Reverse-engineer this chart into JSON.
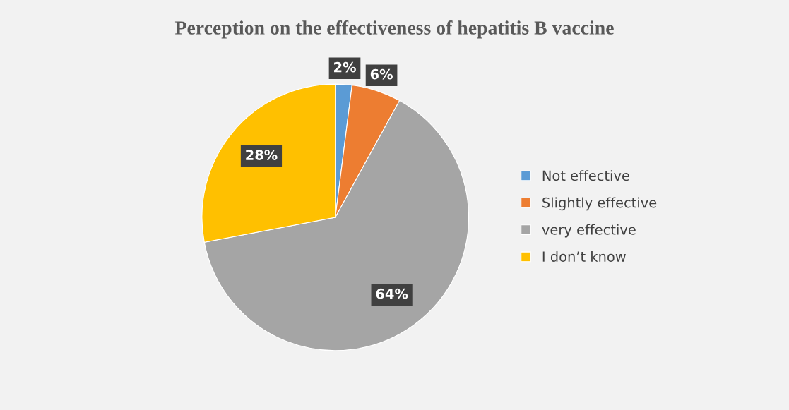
{
  "chart_data": {
    "type": "pie",
    "title": "Perception on the effectiveness of hepatitis B vaccine",
    "categories": [
      "Not effective",
      "Slightly effective",
      "very effective",
      "I don’t know"
    ],
    "values": [
      2,
      6,
      64,
      28
    ],
    "colors": [
      "#5b9bd5",
      "#ed7d31",
      "#a5a5a5",
      "#ffc000"
    ],
    "value_labels": [
      "2%",
      "6%",
      "64%",
      "28%"
    ],
    "legend": "right"
  }
}
